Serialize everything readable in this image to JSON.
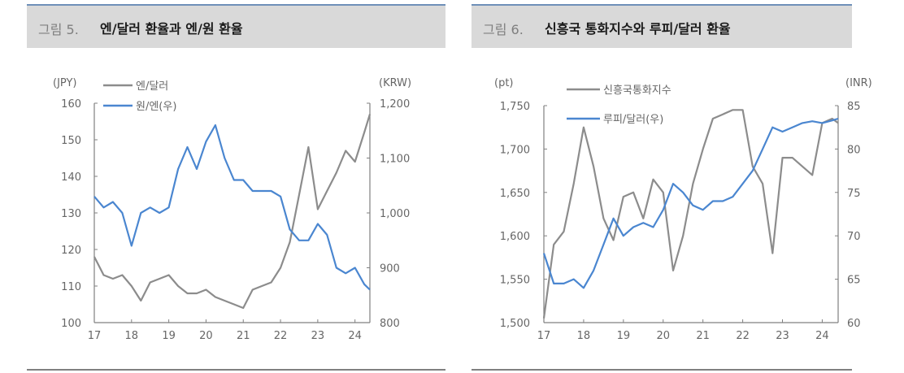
{
  "figures": [
    {
      "figure_label": "그림 5.",
      "title": "엔/달러 환율과 엔/원 환율"
    },
    {
      "figure_label": "그림 6.",
      "title": "신흥국 통화지수와 루피/달러 환율"
    }
  ],
  "colors": {
    "gray_series": "#8c8c8c",
    "blue_series": "#4a86d0",
    "axis": "#808080",
    "header_bg": "#d9d9d9",
    "header_rule": "#6e8fb8"
  },
  "chart_data": [
    {
      "type": "line",
      "title": "엔/달러 환율과 엔/원 환율",
      "left_unit": "(JPY)",
      "right_unit": "(KRW)",
      "x_ticks": [
        "17",
        "18",
        "19",
        "20",
        "21",
        "22",
        "23",
        "24"
      ],
      "left_ticks": [
        "100",
        "110",
        "120",
        "130",
        "140",
        "150",
        "160"
      ],
      "right_ticks": [
        "800",
        "900",
        "1,000",
        "1,100",
        "1,200"
      ],
      "left_ylim": [
        100,
        160
      ],
      "right_ylim": [
        800,
        1200
      ],
      "legend": [
        "엔/달러",
        "원/엔(우)"
      ],
      "x": [
        17.0,
        17.25,
        17.5,
        17.75,
        18.0,
        18.25,
        18.5,
        18.75,
        19.0,
        19.25,
        19.5,
        19.75,
        20.0,
        20.25,
        20.5,
        20.75,
        21.0,
        21.25,
        21.5,
        21.75,
        22.0,
        22.25,
        22.5,
        22.75,
        23.0,
        23.25,
        23.5,
        23.75,
        24.0,
        24.25,
        24.4
      ],
      "series": [
        {
          "name": "엔/달러",
          "axis": "left",
          "values": [
            118,
            113,
            112,
            113,
            110,
            106,
            111,
            112,
            113,
            110,
            108,
            108,
            109,
            107,
            106,
            105,
            104,
            109,
            110,
            111,
            115,
            122,
            135,
            148,
            131,
            136,
            141,
            147,
            144,
            152,
            157
          ]
        },
        {
          "name": "원/엔(우)",
          "axis": "right",
          "values": [
            1030,
            1010,
            1020,
            1000,
            940,
            1000,
            1010,
            1000,
            1010,
            1080,
            1120,
            1080,
            1130,
            1160,
            1100,
            1060,
            1060,
            1040,
            1040,
            1040,
            1030,
            970,
            950,
            950,
            980,
            960,
            900,
            890,
            900,
            870,
            860
          ]
        }
      ]
    },
    {
      "type": "line",
      "title": "신흥국 통화지수와 루피/달러 환율",
      "left_unit": "(pt)",
      "right_unit": "(INR)",
      "x_ticks": [
        "17",
        "18",
        "19",
        "20",
        "21",
        "22",
        "23",
        "24"
      ],
      "left_ticks": [
        "1,500",
        "1,550",
        "1,600",
        "1,650",
        "1,700",
        "1,750"
      ],
      "right_ticks": [
        "60",
        "65",
        "70",
        "75",
        "80",
        "85"
      ],
      "left_ylim": [
        1500,
        1750
      ],
      "right_ylim": [
        60,
        85
      ],
      "legend": [
        "신흥국통화지수",
        "루피/달러(우)"
      ],
      "x": [
        17.0,
        17.25,
        17.5,
        17.75,
        18.0,
        18.25,
        18.5,
        18.75,
        19.0,
        19.25,
        19.5,
        19.75,
        20.0,
        20.25,
        20.5,
        20.75,
        21.0,
        21.25,
        21.5,
        21.75,
        22.0,
        22.25,
        22.5,
        22.75,
        23.0,
        23.25,
        23.5,
        23.75,
        24.0,
        24.25,
        24.4
      ],
      "series": [
        {
          "name": "신흥국통화지수",
          "axis": "left",
          "values": [
            1505,
            1590,
            1605,
            1660,
            1725,
            1680,
            1620,
            1595,
            1645,
            1650,
            1620,
            1665,
            1650,
            1560,
            1600,
            1660,
            1700,
            1735,
            1740,
            1745,
            1745,
            1680,
            1660,
            1580,
            1690,
            1690,
            1680,
            1670,
            1730,
            1735,
            1730
          ]
        },
        {
          "name": "루피/달러(우)",
          "axis": "right",
          "values": [
            68,
            64.5,
            64.5,
            65,
            64,
            66,
            69,
            72,
            70,
            71,
            71.5,
            71,
            73,
            76,
            75,
            73.5,
            73,
            74,
            74,
            74.5,
            76,
            77.5,
            80,
            82.5,
            82,
            82.5,
            83,
            83.2,
            83,
            83.3,
            83.5
          ]
        }
      ]
    }
  ]
}
